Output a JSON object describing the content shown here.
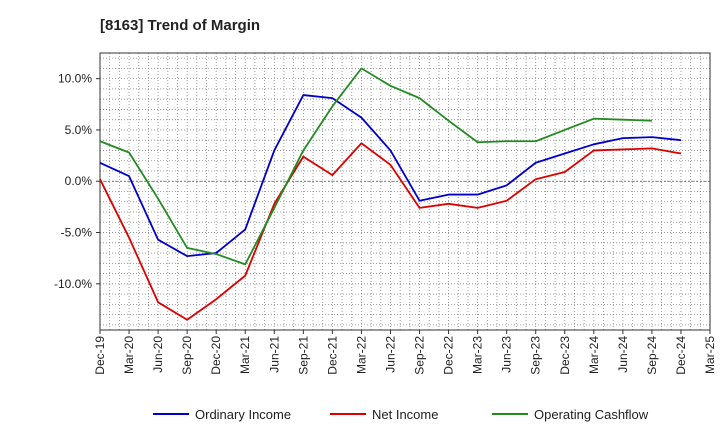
{
  "chart_data": {
    "type": "line",
    "title": "[8163]  Trend of Margin",
    "xlabel": "",
    "ylabel": "",
    "x": [
      "Dec-19",
      "Mar-20",
      "Jun-20",
      "Sep-20",
      "Dec-20",
      "Mar-21",
      "Jun-21",
      "Sep-21",
      "Dec-21",
      "Mar-22",
      "Jun-22",
      "Sep-22",
      "Dec-22",
      "Mar-23",
      "Jun-23",
      "Sep-23",
      "Dec-23",
      "Mar-24",
      "Jun-24",
      "Sep-24",
      "Dec-24",
      "Mar-25"
    ],
    "ylim": [
      -14.5,
      12.5
    ],
    "yticks": [
      10,
      5,
      0,
      -5,
      -10
    ],
    "ytick_labels": [
      "10.0%",
      "5.0%",
      "0.0%",
      "-5.0%",
      "-10.0%"
    ],
    "grid": true,
    "legend_position": "bottom",
    "series": [
      {
        "name": "Ordinary Income",
        "color": "#0000cc",
        "values": [
          1.8,
          0.5,
          -5.7,
          -7.3,
          -7.0,
          -4.7,
          3.0,
          8.4,
          8.1,
          6.2,
          3.0,
          -1.9,
          -1.3,
          -1.3,
          -0.4,
          1.8,
          2.7,
          3.6,
          4.2,
          4.3,
          4.0,
          null
        ]
      },
      {
        "name": "Net Income",
        "color": "#dd0000",
        "values": [
          0.2,
          -5.5,
          -11.8,
          -13.5,
          -11.5,
          -9.2,
          -2.2,
          2.4,
          0.6,
          3.7,
          1.6,
          -2.6,
          -2.2,
          -2.6,
          -1.9,
          0.2,
          0.9,
          3.0,
          3.1,
          3.2,
          2.7,
          null
        ]
      },
      {
        "name": "Operating Cashflow",
        "color": "#228b22",
        "values": [
          3.9,
          2.8,
          -1.7,
          -6.5,
          -7.1,
          -8.1,
          -2.6,
          3.0,
          7.3,
          11.0,
          9.3,
          8.1,
          5.9,
          3.8,
          3.9,
          3.9,
          5.0,
          6.1,
          6.0,
          5.9,
          null,
          null
        ]
      }
    ]
  }
}
